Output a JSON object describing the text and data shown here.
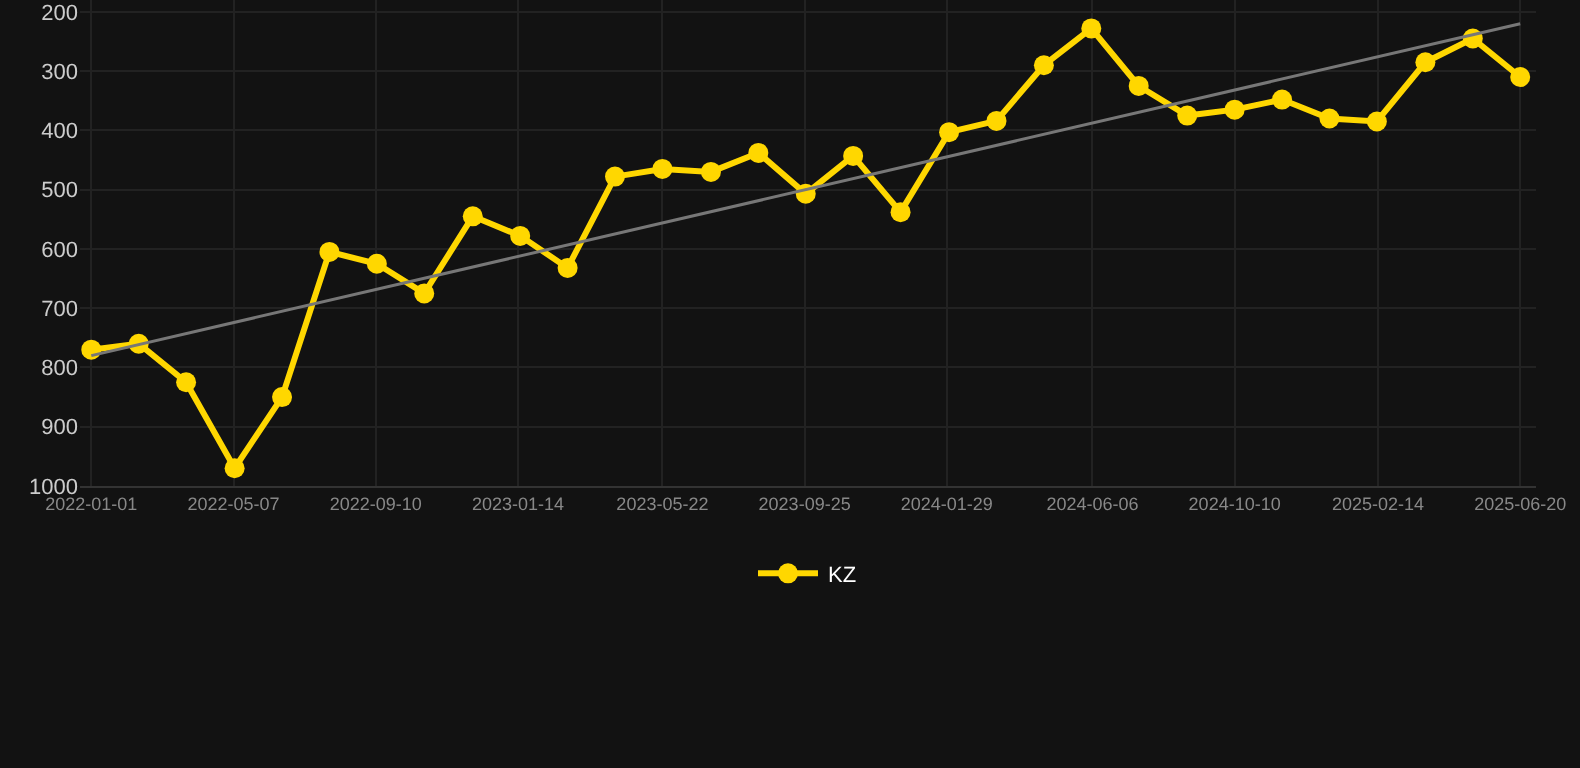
{
  "chart_data": {
    "type": "line",
    "x": [
      "2022-01-01",
      "2022-02-12",
      "2022-03-26",
      "2022-05-08",
      "2022-06-19",
      "2022-07-31",
      "2022-09-11",
      "2022-10-23",
      "2022-12-05",
      "2023-01-16",
      "2023-02-27",
      "2023-04-10",
      "2023-05-22",
      "2023-07-04",
      "2023-08-15",
      "2023-09-26",
      "2023-11-07",
      "2023-12-19",
      "2024-01-31",
      "2024-03-13",
      "2024-04-24",
      "2024-06-05",
      "2024-07-17",
      "2024-08-29",
      "2024-10-10",
      "2024-11-21",
      "2025-01-02",
      "2025-02-13",
      "2025-03-28",
      "2025-05-09",
      "2025-06-20"
    ],
    "series": [
      {
        "name": "KZ",
        "color": "#ffd700",
        "values": [
          770,
          760,
          825,
          970,
          850,
          605,
          625,
          675,
          545,
          578,
          632,
          478,
          465,
          470,
          438,
          507,
          443,
          538,
          403,
          384,
          290,
          228,
          325,
          375,
          365,
          348,
          380,
          385,
          285,
          245,
          310
        ]
      },
      {
        "type": "line",
        "color": "#777777",
        "marker": "none",
        "x": [
          "2022-01-01",
          "2025-06-20"
        ],
        "values": [
          780,
          220
        ]
      }
    ],
    "ylim": [
      1000,
      180
    ],
    "yticks": [
      200,
      300,
      400,
      500,
      600,
      700,
      800,
      900,
      1000
    ],
    "xlim": [
      "2021-12-22",
      "2025-07-04"
    ],
    "xticks": [
      "2022-01-01",
      "2022-05-07",
      "2022-09-10",
      "2023-01-14",
      "2023-05-22",
      "2023-09-25",
      "2024-01-29",
      "2024-06-06",
      "2024-10-10",
      "2025-02-14",
      "2025-06-20"
    ],
    "grid": true,
    "legend": "bottom",
    "marker": "circle",
    "line_style": "solid"
  }
}
